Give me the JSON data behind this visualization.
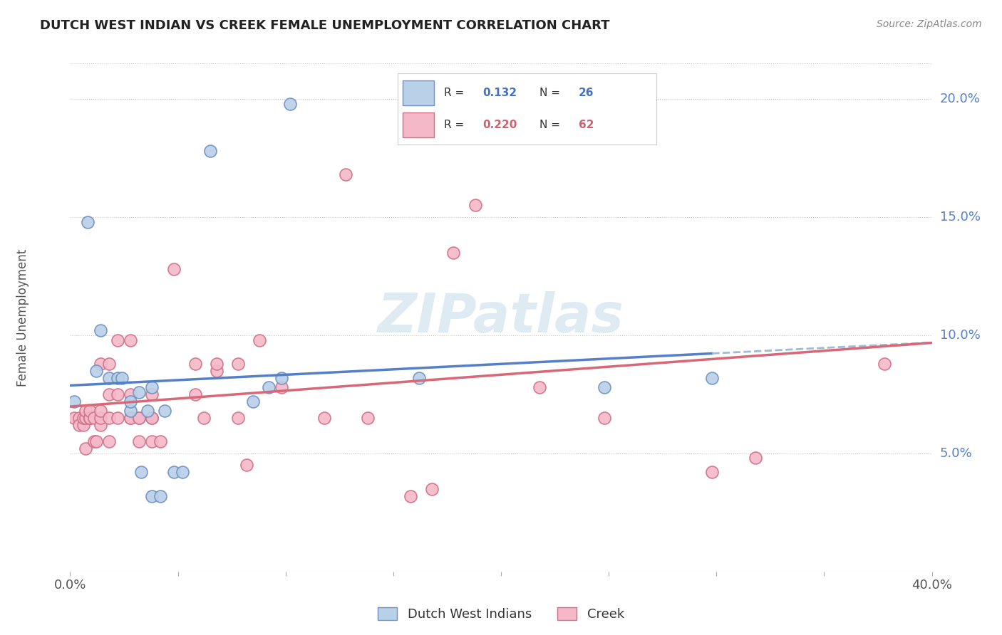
{
  "title": "DUTCH WEST INDIAN VS CREEK FEMALE UNEMPLOYMENT CORRELATION CHART",
  "source": "Source: ZipAtlas.com",
  "ylabel": "Female Unemployment",
  "y_tick_labels": [
    "5.0%",
    "10.0%",
    "15.0%",
    "20.0%"
  ],
  "y_tick_values": [
    0.05,
    0.1,
    0.15,
    0.2
  ],
  "xlim": [
    0.0,
    0.4
  ],
  "ylim": [
    0.0,
    0.215
  ],
  "blue_color": "#b8d0e8",
  "pink_color": "#f5b8c8",
  "blue_edge_color": "#7090c0",
  "pink_edge_color": "#d07088",
  "blue_line_color": "#5580c8",
  "pink_line_color": "#d86878",
  "dashed_line_color": "#a0bcd0",
  "watermark": "ZIPatlas",
  "dutch_west_indians_x": [
    0.002,
    0.008,
    0.012,
    0.014,
    0.018,
    0.022,
    0.024,
    0.028,
    0.028,
    0.032,
    0.033,
    0.036,
    0.038,
    0.038,
    0.042,
    0.044,
    0.048,
    0.052,
    0.065,
    0.085,
    0.092,
    0.098,
    0.102,
    0.162,
    0.248,
    0.298
  ],
  "dutch_west_indians_y": [
    0.072,
    0.148,
    0.085,
    0.102,
    0.082,
    0.082,
    0.082,
    0.068,
    0.072,
    0.076,
    0.042,
    0.068,
    0.078,
    0.032,
    0.032,
    0.068,
    0.042,
    0.042,
    0.178,
    0.072,
    0.078,
    0.082,
    0.198,
    0.082,
    0.078,
    0.082
  ],
  "creek_x": [
    0.002,
    0.004,
    0.004,
    0.006,
    0.006,
    0.007,
    0.007,
    0.007,
    0.009,
    0.009,
    0.009,
    0.009,
    0.011,
    0.011,
    0.012,
    0.014,
    0.014,
    0.014,
    0.014,
    0.018,
    0.018,
    0.018,
    0.018,
    0.022,
    0.022,
    0.022,
    0.028,
    0.028,
    0.028,
    0.028,
    0.032,
    0.032,
    0.032,
    0.038,
    0.038,
    0.038,
    0.038,
    0.042,
    0.048,
    0.058,
    0.058,
    0.062,
    0.068,
    0.068,
    0.078,
    0.078,
    0.082,
    0.088,
    0.098,
    0.118,
    0.128,
    0.138,
    0.158,
    0.168,
    0.178,
    0.188,
    0.198,
    0.218,
    0.248,
    0.298,
    0.318,
    0.378
  ],
  "creek_y": [
    0.065,
    0.065,
    0.062,
    0.062,
    0.065,
    0.065,
    0.068,
    0.052,
    0.065,
    0.065,
    0.065,
    0.068,
    0.055,
    0.065,
    0.055,
    0.062,
    0.065,
    0.068,
    0.088,
    0.055,
    0.065,
    0.075,
    0.088,
    0.065,
    0.075,
    0.098,
    0.065,
    0.065,
    0.075,
    0.098,
    0.055,
    0.065,
    0.065,
    0.055,
    0.065,
    0.075,
    0.065,
    0.055,
    0.128,
    0.075,
    0.088,
    0.065,
    0.085,
    0.088,
    0.088,
    0.065,
    0.045,
    0.098,
    0.078,
    0.065,
    0.168,
    0.065,
    0.032,
    0.035,
    0.135,
    0.155,
    0.185,
    0.078,
    0.065,
    0.042,
    0.048,
    0.088
  ]
}
